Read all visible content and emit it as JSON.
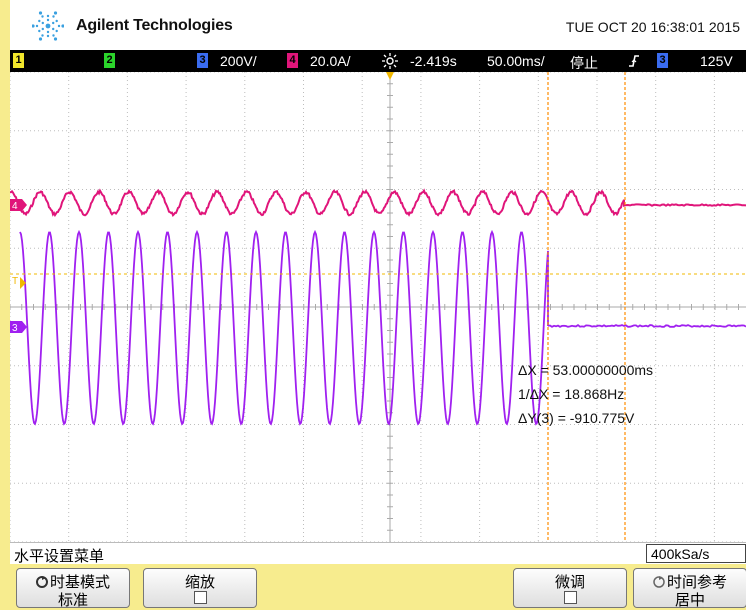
{
  "header": {
    "brand": "Agilent Technologies",
    "datetime": "TUE OCT 20 16:38:01 2015"
  },
  "statusbar": {
    "ch1": "1",
    "ch2": "2",
    "ch3": "3",
    "ch3_scale": "200V/",
    "ch4": "4",
    "ch4_scale": "20.0A/",
    "delay": "-2.419s",
    "timebase": "50.00ms/",
    "run_state": "停止",
    "trigger_source": "3",
    "trigger_level": "125V"
  },
  "cursors": {
    "delta_x": "ΔX = 53.00000000ms",
    "inv_delta_x": "1/ΔX = 18.868Hz",
    "delta_y": "ΔY(3) = -910.775V"
  },
  "markers": {
    "ch4": "4",
    "trigger": "T",
    "ch3": "3"
  },
  "menu": {
    "title": "水平设置菜单",
    "sample_rate": "400kSa/s"
  },
  "softkeys": {
    "timebase_mode_label": "时基模式",
    "timebase_mode_value": "标准",
    "zoom_label": "缩放",
    "fine_label": "微调",
    "reference_label": "时间参考",
    "reference_value": "居中"
  },
  "colors": {
    "ch3": "#a020f0",
    "ch4": "#e0157a",
    "ch1": "#f1e62c",
    "ch2": "#2bd42b",
    "ch3_box": "#3a6cf0",
    "ch4_box": "#e0157a",
    "cursor": "#ff8c00"
  }
}
